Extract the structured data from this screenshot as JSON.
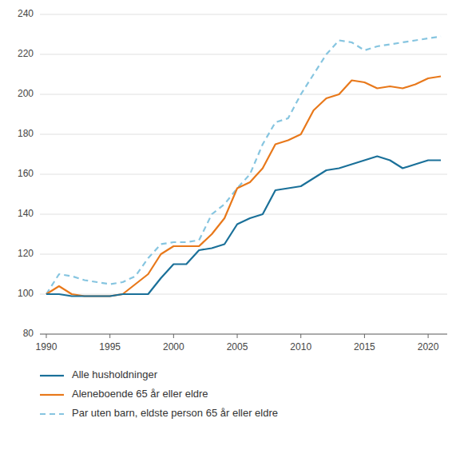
{
  "chart_data": {
    "type": "line",
    "x": [
      1990,
      1991,
      1992,
      1993,
      1994,
      1995,
      1996,
      1997,
      1998,
      1999,
      2000,
      2001,
      2002,
      2003,
      2004,
      2005,
      2006,
      2007,
      2008,
      2009,
      2010,
      2011,
      2012,
      2013,
      2014,
      2015,
      2016,
      2017,
      2018,
      2019,
      2020,
      2021
    ],
    "series": [
      {
        "name": "Alle husholdninger",
        "color": "#1a7099",
        "line_style": "solid",
        "values": [
          100,
          100,
          99,
          99,
          99,
          99,
          100,
          100,
          100,
          108,
          115,
          115,
          122,
          123,
          125,
          135,
          138,
          140,
          152,
          153,
          154,
          158,
          162,
          163,
          165,
          167,
          169,
          167,
          163,
          165,
          167,
          167
        ]
      },
      {
        "name": "Aleneboende 65 år eller eldre",
        "color": "#e8781a",
        "line_style": "solid",
        "values": [
          100,
          104,
          100,
          99,
          99,
          99,
          100,
          105,
          110,
          120,
          124,
          124,
          124,
          130,
          138,
          153,
          156,
          163,
          175,
          177,
          180,
          192,
          198,
          200,
          207,
          206,
          203,
          204,
          203,
          205,
          208,
          209
        ]
      },
      {
        "name": "Par uten barn, eldste person 65 år eller eldre",
        "color": "#86c5e0",
        "line_style": "dashed",
        "values": [
          100,
          110,
          109,
          107,
          106,
          105,
          106,
          109,
          118,
          125,
          126,
          126,
          127,
          140,
          145,
          153,
          160,
          175,
          186,
          188,
          200,
          210,
          220,
          227,
          226,
          222,
          224,
          225,
          226,
          227,
          228,
          229
        ]
      }
    ],
    "xlim": [
      1989.5,
      2021.5
    ],
    "xticks": [
      1990,
      1995,
      2000,
      2005,
      2010,
      2015,
      2020
    ],
    "ylim": [
      80,
      240
    ],
    "yticks": [
      80,
      100,
      120,
      140,
      160,
      180,
      200,
      220,
      240
    ],
    "grid": true,
    "legend": "bottom"
  }
}
